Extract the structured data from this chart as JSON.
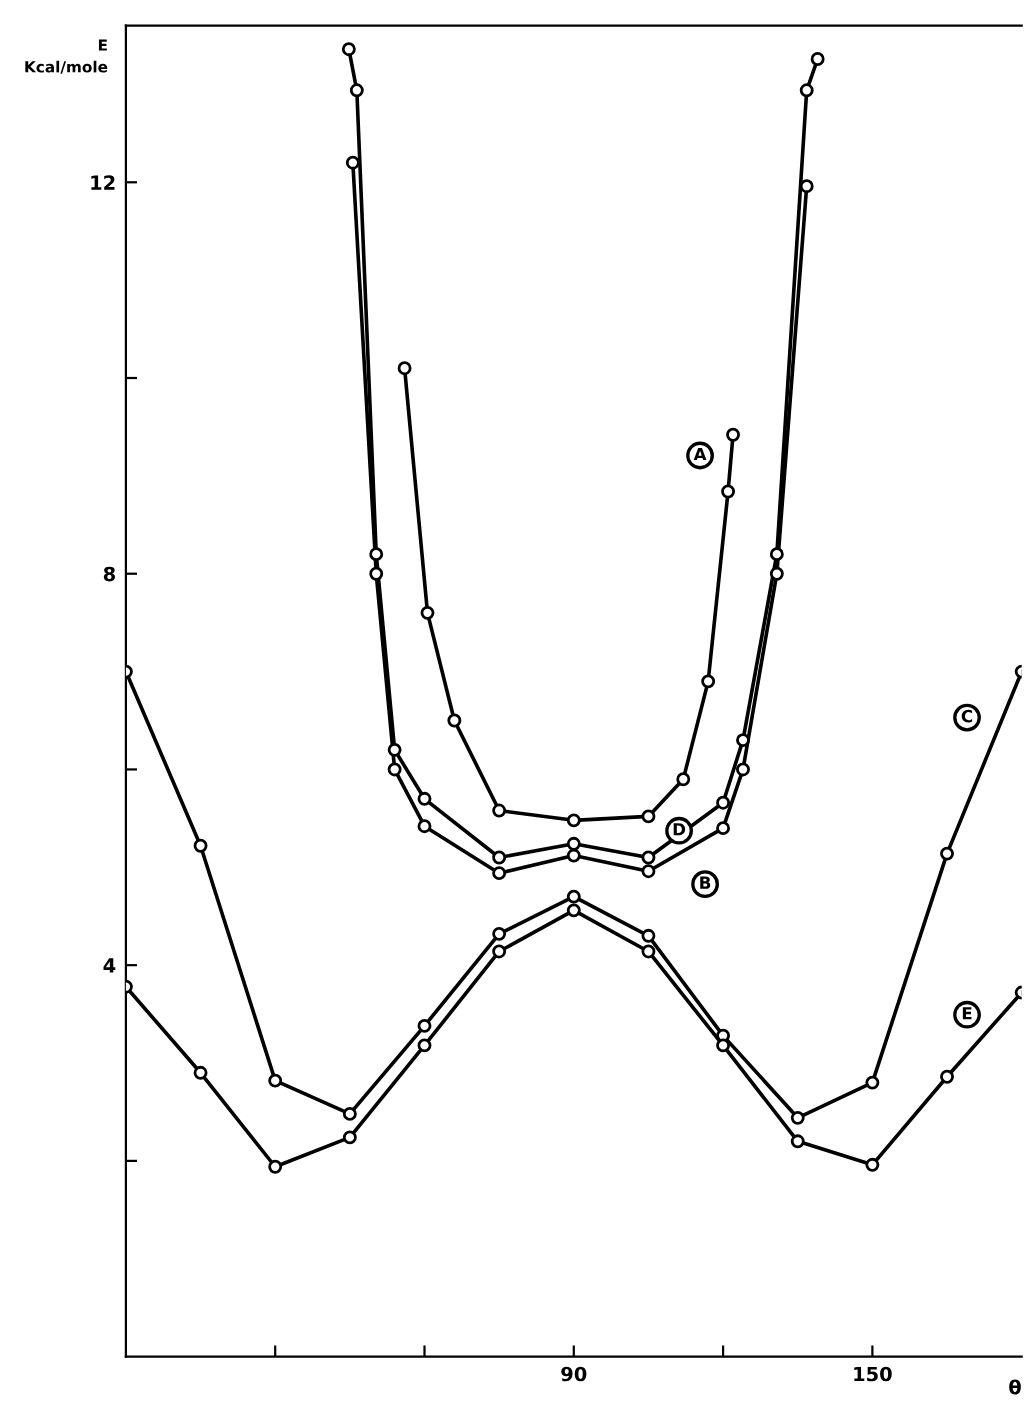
{
  "chart_data": {
    "type": "line",
    "xlabel": "θ",
    "ylabel": "E\nKcal/mole",
    "xlim": [
      0,
      180
    ],
    "ylim": [
      0,
      13.6
    ],
    "xticks": [
      {
        "value": 30,
        "label": null
      },
      {
        "value": 60,
        "label": null
      },
      90,
      {
        "value": 120,
        "label": null
      },
      150
    ],
    "yticks": [
      {
        "value": 2,
        "label": null
      },
      4,
      {
        "value": 6,
        "label": null
      },
      8,
      {
        "value": 10,
        "label": null
      },
      12
    ],
    "grid": false,
    "marker": "circle",
    "line_style": "solid",
    "series": [
      {
        "name": "A",
        "color": "#000000",
        "x": [
          56,
          60.6,
          66,
          75,
          90,
          105,
          112,
          117,
          121,
          122
        ],
        "values": [
          10.1,
          7.6,
          6.5,
          5.58,
          5.48,
          5.52,
          5.9,
          6.9,
          8.84,
          9.42
        ]
      },
      {
        "name": "B",
        "color": "#000000",
        "x": [
          45.6,
          50.3,
          54,
          60,
          75,
          90,
          105,
          120,
          124,
          130.8,
          136.8
        ],
        "values": [
          12.2,
          8.0,
          6.0,
          5.42,
          4.94,
          5.12,
          4.96,
          5.4,
          6.0,
          8.0,
          11.96
        ]
      },
      {
        "name": "C",
        "color": "#000000",
        "x": [
          0,
          15,
          30,
          45,
          60,
          75,
          90,
          105,
          120,
          135,
          150,
          165,
          180
        ],
        "values": [
          7.0,
          5.22,
          2.82,
          2.48,
          3.38,
          4.32,
          4.7,
          4.3,
          3.28,
          2.44,
          2.8,
          5.14,
          7.0
        ]
      },
      {
        "name": "D",
        "color": "#000000",
        "x": [
          44.8,
          46.4,
          50.3,
          54,
          60,
          75,
          90,
          105,
          120,
          124,
          130.8,
          136.8,
          139
        ],
        "values": [
          13.36,
          12.94,
          8.2,
          6.2,
          5.7,
          5.1,
          5.24,
          5.1,
          5.66,
          6.3,
          8.2,
          12.94,
          13.26
        ]
      },
      {
        "name": "E",
        "color": "#000000",
        "x": [
          0,
          15,
          30,
          45,
          60,
          75,
          90,
          105,
          120,
          135,
          150,
          165,
          180
        ],
        "values": [
          3.78,
          2.9,
          1.94,
          2.24,
          3.18,
          4.14,
          4.56,
          4.14,
          3.18,
          2.2,
          1.96,
          2.86,
          3.72
        ]
      }
    ]
  }
}
